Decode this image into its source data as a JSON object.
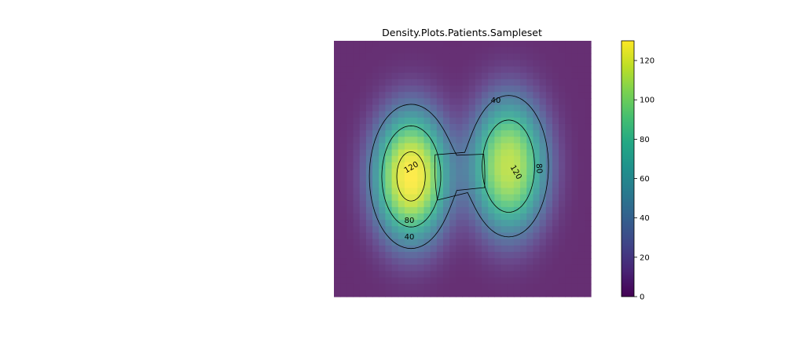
{
  "chart_data": {
    "type": "heatmap",
    "title": "Density.Plots.Patients.Sampleset",
    "xlabel": "",
    "ylabel": "",
    "colormap": "viridis",
    "axes_visible": false,
    "grid": false,
    "colorbar": {
      "position": "right",
      "range": [
        0,
        130
      ],
      "ticks": [
        0,
        20,
        40,
        60,
        80,
        100,
        120
      ],
      "tick_labels": [
        "0",
        "20",
        "40",
        "60",
        "80",
        "100",
        "120"
      ]
    },
    "series": [
      {
        "peak_density": 130,
        "contour_levels": [
          40,
          80,
          120
        ],
        "contour_labels": [
          "40",
          "80",
          "120"
        ]
      },
      {
        "peak_density": 115,
        "contour_levels": [
          40,
          80,
          120
        ],
        "contour_labels": [
          "40",
          "80",
          "120"
        ]
      }
    ],
    "contour_color": "#000000"
  }
}
